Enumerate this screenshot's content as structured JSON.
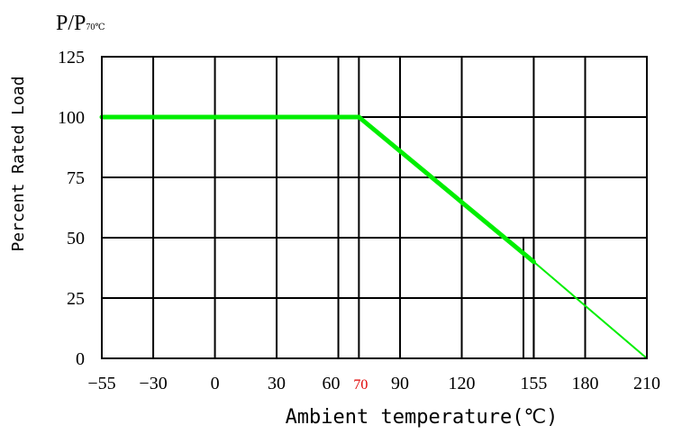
{
  "chart_data": {
    "type": "line",
    "title": "",
    "corner_label": {
      "main": "P/P",
      "sub": "70℃"
    },
    "xlabel": "Ambient temperature(℃)",
    "ylabel": "Percent Rated Load",
    "x_ticks": [
      -55,
      -30,
      0,
      30,
      60,
      70,
      90,
      120,
      155,
      180,
      210
    ],
    "x_tick_labels": [
      "−55",
      "−30",
      "0",
      "30",
      "60",
      "70",
      "90",
      "120",
      "155",
      "180",
      "210"
    ],
    "x_highlight_tick": "70",
    "y_ticks": [
      0,
      25,
      50,
      75,
      100,
      125
    ],
    "y_tick_labels": [
      "0",
      "25",
      "50",
      "75",
      "100",
      "125"
    ],
    "xlim": [
      -55,
      210
    ],
    "ylim": [
      0,
      125
    ],
    "grid": true,
    "extra_vertical_lines": [
      150,
      155
    ],
    "series": [
      {
        "x": [
          -55,
          70,
          155,
          210
        ],
        "y": [
          100,
          100,
          40,
          0
        ],
        "color": "#00ee00"
      }
    ],
    "colors": {
      "axis": "#000000",
      "line": "#00ee00",
      "highlight_tick": "#e00000"
    }
  }
}
